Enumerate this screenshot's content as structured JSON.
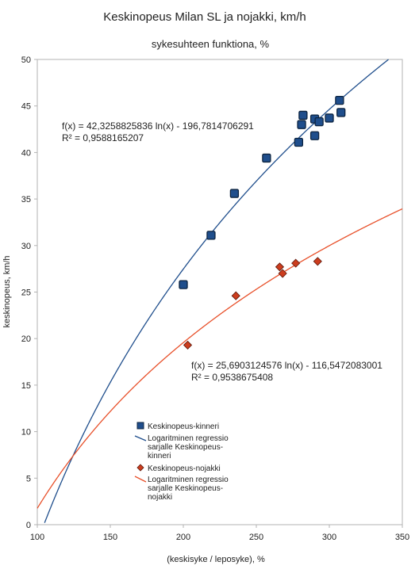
{
  "chart_data": {
    "type": "scatter",
    "title": "Keskinopeus Milan SL ja nojakki, km/h",
    "subtitle": "sykesuhteen funktiona, %",
    "xlabel": "(keskisyke / leposyke), %",
    "ylabel": "keskinopeus, km/h",
    "xlim": [
      100,
      350
    ],
    "ylim": [
      0,
      50
    ],
    "x_ticks": [
      100,
      150,
      200,
      250,
      300,
      350
    ],
    "y_ticks": [
      0,
      5,
      10,
      15,
      20,
      25,
      30,
      35,
      40,
      45,
      50
    ],
    "grid": false,
    "legend_position": "bottom-left",
    "series": [
      {
        "name": "Keskinopeus-kinneri",
        "marker": "square",
        "color": "#1f4e8c",
        "points": [
          {
            "x": 200,
            "y": 25.8
          },
          {
            "x": 219,
            "y": 31.1
          },
          {
            "x": 235,
            "y": 35.6
          },
          {
            "x": 257,
            "y": 39.4
          },
          {
            "x": 279,
            "y": 41.1
          },
          {
            "x": 281,
            "y": 43.0
          },
          {
            "x": 282,
            "y": 44.0
          },
          {
            "x": 290,
            "y": 43.6
          },
          {
            "x": 290,
            "y": 41.8
          },
          {
            "x": 293,
            "y": 43.3
          },
          {
            "x": 300,
            "y": 43.7
          },
          {
            "x": 307,
            "y": 45.6
          },
          {
            "x": 308,
            "y": 44.3
          }
        ]
      },
      {
        "name": "Keskinopeus-nojakki",
        "marker": "diamond",
        "color": "#cc3d1e",
        "points": [
          {
            "x": 203,
            "y": 19.3
          },
          {
            "x": 236,
            "y": 24.6
          },
          {
            "x": 266,
            "y": 27.7
          },
          {
            "x": 268,
            "y": 27.0
          },
          {
            "x": 277,
            "y": 28.1
          },
          {
            "x": 292,
            "y": 28.3
          }
        ]
      }
    ],
    "trendlines": [
      {
        "name": "Logaritminen regressio sarjalle Keskinopeus-kinneri",
        "legend_lines": [
          "Logaritminen regressio",
          "sarjalle Keskinopeus-",
          "kinneri"
        ],
        "a": 42.3258825836,
        "b": -196.7814706291,
        "color": "#1f4e8c",
        "equation": "f(x) = 42,3258825836 ln(x) - 196,7814706291",
        "r2": "R² = 0,9588165207"
      },
      {
        "name": "Logaritminen regressio sarjalle Keskinopeus-nojakki",
        "legend_lines": [
          "Logaritminen regressio",
          "sarjalle Keskinopeus-",
          "nojakki"
        ],
        "a": 25.6903124576,
        "b": -116.5472083001,
        "color": "#e8502a",
        "equation": "f(x) = 25,6903124576 ln(x) - 116,5472083001",
        "r2": "R² = 0,9538675408"
      }
    ]
  }
}
